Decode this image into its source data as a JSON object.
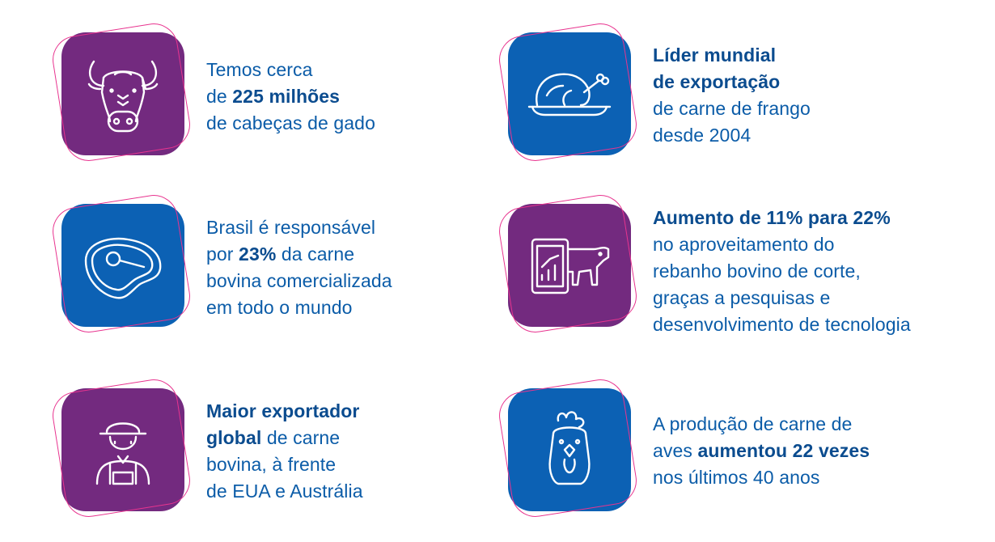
{
  "colors": {
    "purple": "#732a7f",
    "blue": "#0c61b4",
    "ring": "#e8348f",
    "text": "#0b5ca8"
  },
  "cards": [
    {
      "icon": "bull-icon",
      "lines": [
        {
          "parts": [
            {
              "t": "Temos cerca",
              "b": false
            }
          ]
        },
        {
          "parts": [
            {
              "t": "de ",
              "b": false
            },
            {
              "t": "225 milhões",
              "b": true
            }
          ]
        },
        {
          "parts": [
            {
              "t": "de cabeças de gado",
              "b": false
            }
          ]
        }
      ]
    },
    {
      "icon": "roast-chicken-icon",
      "lines": [
        {
          "parts": [
            {
              "t": "Líder mundial",
              "b": true
            }
          ]
        },
        {
          "parts": [
            {
              "t": "de exportação",
              "b": true
            }
          ]
        },
        {
          "parts": [
            {
              "t": "de carne de frango",
              "b": false
            }
          ]
        },
        {
          "parts": [
            {
              "t": "desde 2004",
              "b": false
            }
          ]
        }
      ]
    },
    {
      "icon": "steak-icon",
      "lines": [
        {
          "parts": [
            {
              "t": "Brasil é responsável",
              "b": false
            }
          ]
        },
        {
          "parts": [
            {
              "t": "por ",
              "b": false
            },
            {
              "t": "23%",
              "b": true
            },
            {
              "t": " da carne",
              "b": false
            }
          ]
        },
        {
          "parts": [
            {
              "t": "bovina comercializada",
              "b": false
            }
          ]
        },
        {
          "parts": [
            {
              "t": "em todo o mundo",
              "b": false
            }
          ]
        }
      ]
    },
    {
      "icon": "cow-chart-icon",
      "lines": [
        {
          "parts": [
            {
              "t": "Aumento de 11% para 22%",
              "b": true
            }
          ]
        },
        {
          "parts": [
            {
              "t": "no aproveitamento do",
              "b": false
            }
          ]
        },
        {
          "parts": [
            {
              "t": "rebanho bovino de corte,",
              "b": false
            }
          ]
        },
        {
          "parts": [
            {
              "t": "graças a pesquisas e",
              "b": false
            }
          ]
        },
        {
          "parts": [
            {
              "t": "desenvolvimento de tecnologia",
              "b": false
            }
          ]
        }
      ]
    },
    {
      "icon": "farmer-icon",
      "lines": [
        {
          "parts": [
            {
              "t": "Maior exportador",
              "b": true
            }
          ]
        },
        {
          "parts": [
            {
              "t": "global",
              "b": true
            },
            {
              "t": " de carne",
              "b": false
            }
          ]
        },
        {
          "parts": [
            {
              "t": "bovina, à frente",
              "b": false
            }
          ]
        },
        {
          "parts": [
            {
              "t": "de EUA e Austrália",
              "b": false
            }
          ]
        }
      ]
    },
    {
      "icon": "rooster-icon",
      "lines": [
        {
          "parts": [
            {
              "t": "A produção de carne de",
              "b": false
            }
          ]
        },
        {
          "parts": [
            {
              "t": "aves ",
              "b": false
            },
            {
              "t": "aumentou 22 vezes",
              "b": true
            }
          ]
        },
        {
          "parts": [
            {
              "t": "nos últimos 40 anos",
              "b": false
            }
          ]
        }
      ]
    }
  ]
}
